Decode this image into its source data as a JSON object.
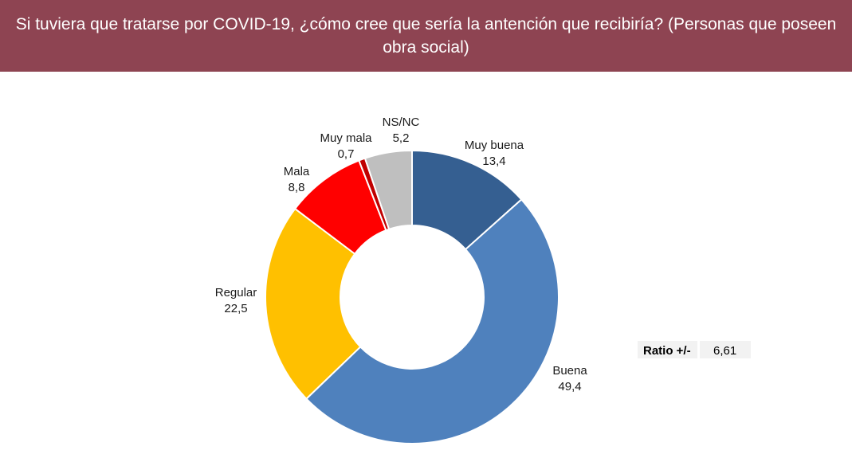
{
  "header": {
    "title": "Si tuviera que tratarse por COVID-19, ¿cómo cree que sería la antención que recibiría? (Personas que poseen obra social)"
  },
  "chart_data": {
    "type": "pie",
    "subtype": "donut",
    "title": "",
    "labels": [
      "Muy buena",
      "Buena",
      "Regular",
      "Mala",
      "Muy mala",
      "NS/NC"
    ],
    "values": [
      13.4,
      49.4,
      22.5,
      8.8,
      0.7,
      5.2
    ],
    "value_labels": [
      "13,4",
      "49,4",
      "22,5",
      "8,8",
      "0,7",
      "5,2"
    ],
    "colors": [
      "#355f91",
      "#4f81bd",
      "#ffc000",
      "#ff0000",
      "#c00000",
      "#bfbfbf"
    ],
    "legend": "none",
    "start": "top, clockwise"
  },
  "ratio": {
    "label": "Ratio +/-",
    "value": "6,61"
  }
}
